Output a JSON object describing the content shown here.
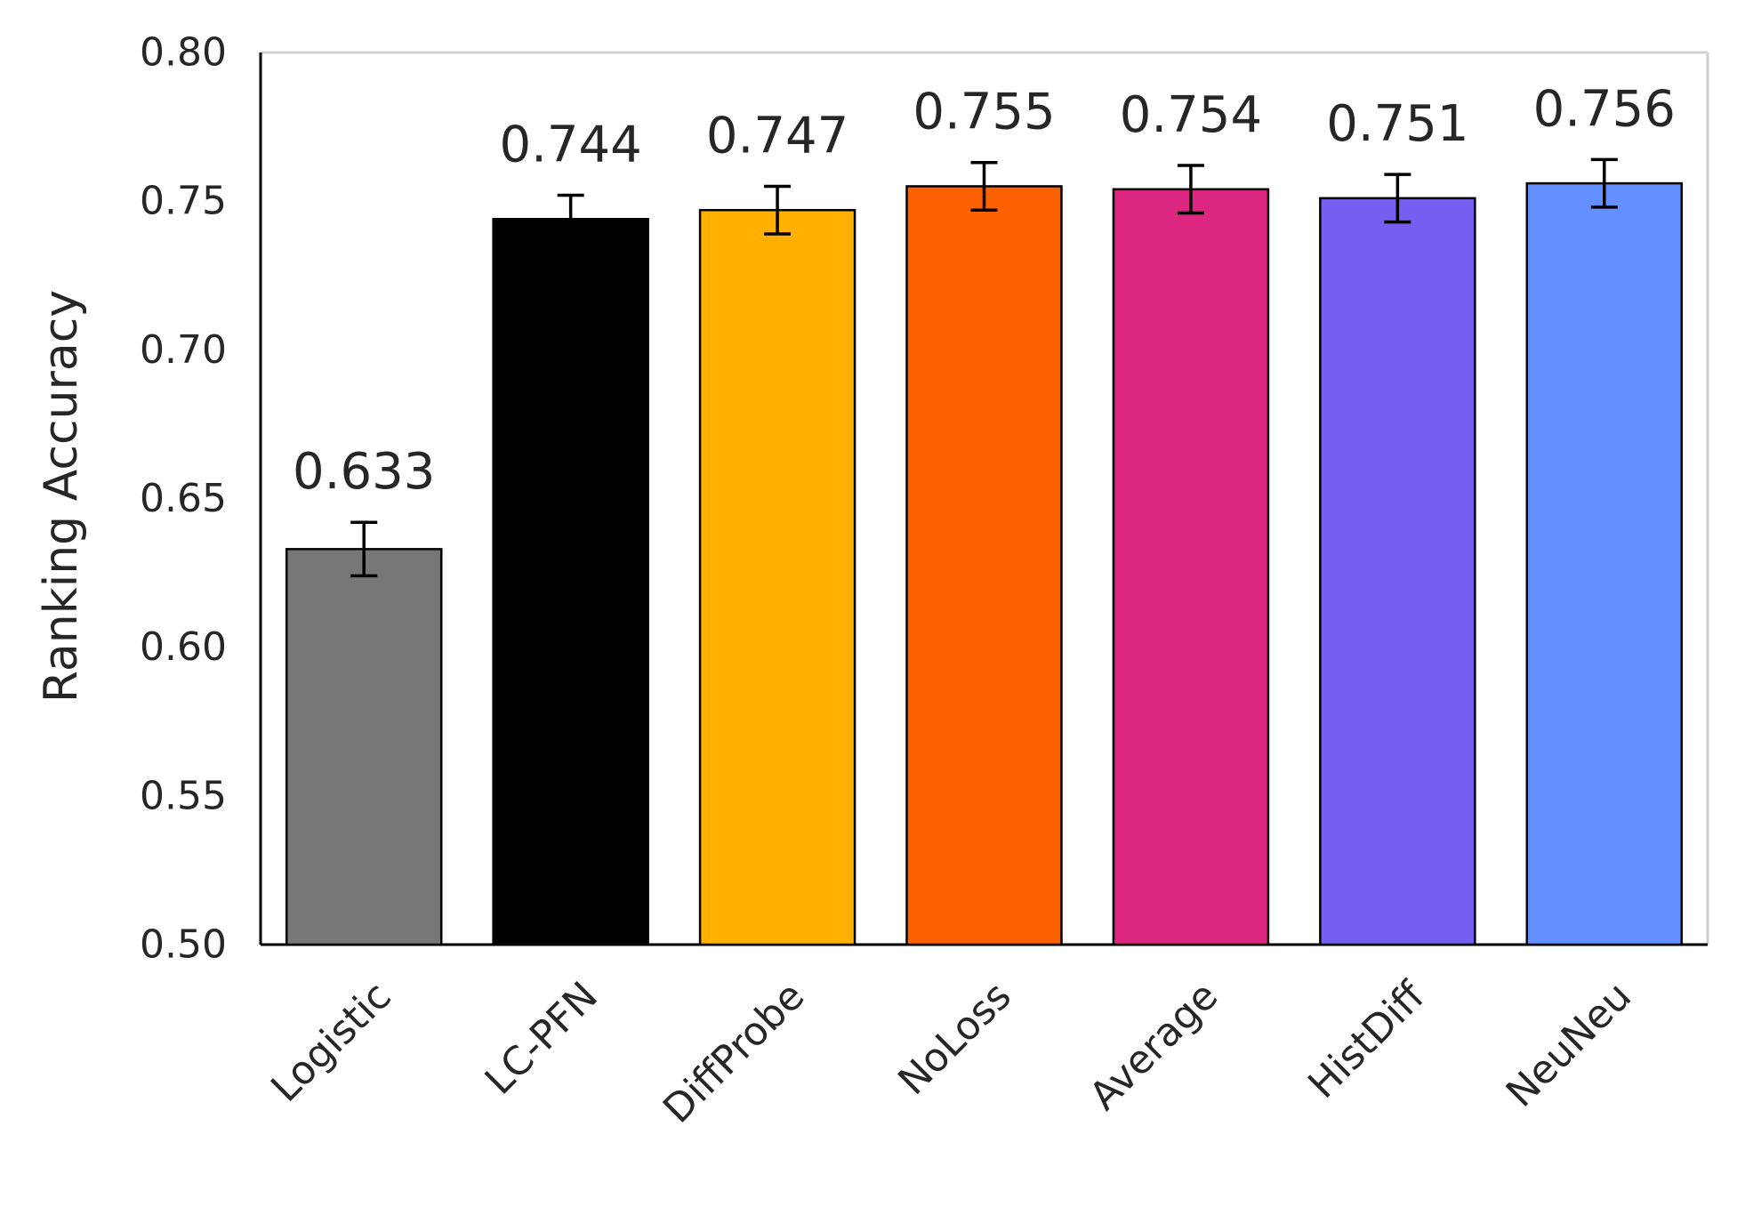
{
  "chart_data": {
    "type": "bar",
    "title": "",
    "xlabel": "",
    "ylabel": "Ranking Accuracy",
    "ylim": [
      0.5,
      0.8
    ],
    "yticks": [
      "0.50",
      "0.55",
      "0.60",
      "0.65",
      "0.70",
      "0.75",
      "0.80"
    ],
    "grid": false,
    "categories": [
      "Logistic",
      "LC-PFN",
      "DiffProbe",
      "NoLoss",
      "Average",
      "HistDiff",
      "NeuNeu"
    ],
    "values": [
      0.633,
      0.744,
      0.747,
      0.755,
      0.754,
      0.751,
      0.756
    ],
    "value_labels": [
      "0.633",
      "0.744",
      "0.747",
      "0.755",
      "0.754",
      "0.751",
      "0.756"
    ],
    "error": [
      0.009,
      0.008,
      0.008,
      0.008,
      0.008,
      0.008,
      0.008
    ],
    "colors": [
      "#777777",
      "#000000",
      "#FFB000",
      "#FE6100",
      "#DC267F",
      "#785EF0",
      "#648FFF"
    ]
  }
}
